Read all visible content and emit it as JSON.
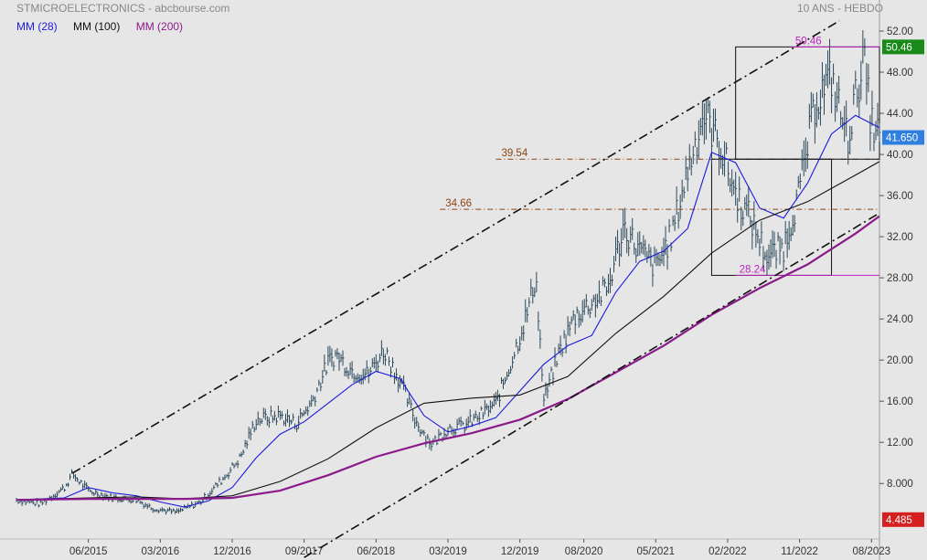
{
  "header": {
    "left_title": "STMICROELECTRONICS - abcbourse.com",
    "right_title": "10 ANS - HEBDO"
  },
  "legend": [
    {
      "label": "MM (28)",
      "color": "#1a1adc"
    },
    {
      "label": "MM (100)",
      "color": "#111111"
    },
    {
      "label": "MM (200)",
      "color": "#8b1a8b"
    }
  ],
  "chart_data": {
    "type": "line",
    "yticks": [
      "52.00",
      "48.00",
      "44.00",
      "40.00",
      "36.00",
      "32.00",
      "28.00",
      "24.00",
      "20.00",
      "16.00",
      "12.00",
      "8.000"
    ],
    "xticks": [
      "06/2015",
      "03/2016",
      "12/2016",
      "09/2017",
      "06/2018",
      "03/2019",
      "12/2019",
      "08/2020",
      "05/2021",
      "02/2022",
      "11/2022",
      "08/2023"
    ],
    "ylim": [
      2.6,
      53.6
    ],
    "price_series": [
      [
        "2014-09",
        6.4
      ],
      [
        "2014-12",
        6.0
      ],
      [
        "2015-03",
        7.6
      ],
      [
        "2015-04",
        8.9
      ],
      [
        "2015-06",
        7.3
      ],
      [
        "2015-09",
        6.6
      ],
      [
        "2015-12",
        6.4
      ],
      [
        "2016-02",
        5.6
      ],
      [
        "2016-05",
        5.2
      ],
      [
        "2016-08",
        6.2
      ],
      [
        "2016-11",
        8.6
      ],
      [
        "2017-01",
        10.5
      ],
      [
        "2017-03",
        14.2
      ],
      [
        "2017-06",
        14.6
      ],
      [
        "2017-08",
        13.8
      ],
      [
        "2017-10",
        16.0
      ],
      [
        "2017-12",
        19.8
      ],
      [
        "2018-01",
        20.5
      ],
      [
        "2018-03",
        19.0
      ],
      [
        "2018-05",
        18.6
      ],
      [
        "2018-07",
        21.0
      ],
      [
        "2018-09",
        18.0
      ],
      [
        "2018-11",
        14.0
      ],
      [
        "2019-01",
        11.8
      ],
      [
        "2019-03",
        13.4
      ],
      [
        "2019-05",
        13.6
      ],
      [
        "2019-07",
        14.6
      ],
      [
        "2019-09",
        15.8
      ],
      [
        "2019-11",
        20.0
      ],
      [
        "2020-01",
        24.8
      ],
      [
        "2020-02",
        28.2
      ],
      [
        "2020-03",
        16.0
      ],
      [
        "2020-05",
        21.0
      ],
      [
        "2020-07",
        24.4
      ],
      [
        "2020-09",
        25.6
      ],
      [
        "2020-11",
        27.0
      ],
      [
        "2021-01",
        33.0
      ],
      [
        "2021-03",
        30.6
      ],
      [
        "2021-05",
        29.0
      ],
      [
        "2021-07",
        32.2
      ],
      [
        "2021-09",
        38.5
      ],
      [
        "2021-11",
        44.0
      ],
      [
        "2022-01",
        41.0
      ],
      [
        "2022-03",
        36.2
      ],
      [
        "2022-05",
        33.5
      ],
      [
        "2022-07",
        30.0
      ],
      [
        "2022-09",
        31.0
      ],
      [
        "2022-11",
        36.5
      ],
      [
        "2023-01",
        45.2
      ],
      [
        "2023-03",
        47.5
      ],
      [
        "2023-05",
        41.5
      ],
      [
        "2023-07",
        49.4
      ],
      [
        "2023-08",
        43.0
      ],
      [
        "2023-09",
        41.65
      ]
    ],
    "series": [
      {
        "name": "MM (28)",
        "color": "#1a1adc",
        "values": [
          [
            "2014-09",
            6.4
          ],
          [
            "2015-03",
            6.6
          ],
          [
            "2015-06",
            7.6
          ],
          [
            "2015-09",
            7.1
          ],
          [
            "2015-12",
            6.8
          ],
          [
            "2016-03",
            6.2
          ],
          [
            "2016-06",
            5.7
          ],
          [
            "2016-09",
            6.3
          ],
          [
            "2016-12",
            7.6
          ],
          [
            "2017-03",
            10.5
          ],
          [
            "2017-06",
            12.8
          ],
          [
            "2017-09",
            14.0
          ],
          [
            "2017-12",
            15.8
          ],
          [
            "2018-03",
            17.6
          ],
          [
            "2018-06",
            18.9
          ],
          [
            "2018-09",
            18.2
          ],
          [
            "2018-12",
            14.6
          ],
          [
            "2019-03",
            13.0
          ],
          [
            "2019-06",
            13.6
          ],
          [
            "2019-09",
            14.4
          ],
          [
            "2019-12",
            17.0
          ],
          [
            "2020-03",
            19.6
          ],
          [
            "2020-06",
            21.4
          ],
          [
            "2020-09",
            22.4
          ],
          [
            "2020-12",
            26.6
          ],
          [
            "2021-03",
            29.6
          ],
          [
            "2021-06",
            30.6
          ],
          [
            "2021-09",
            32.8
          ],
          [
            "2021-12",
            40.2
          ],
          [
            "2022-03",
            39.2
          ],
          [
            "2022-06",
            34.8
          ],
          [
            "2022-09",
            33.8
          ],
          [
            "2022-12",
            37.2
          ],
          [
            "2023-03",
            42.0
          ],
          [
            "2023-06",
            43.8
          ],
          [
            "2023-09",
            42.6
          ]
        ]
      },
      {
        "name": "MM (100)",
        "color": "#111111",
        "values": [
          [
            "2014-09",
            6.4
          ],
          [
            "2015-06",
            6.6
          ],
          [
            "2015-12",
            6.7
          ],
          [
            "2016-06",
            6.5
          ],
          [
            "2016-12",
            6.8
          ],
          [
            "2017-06",
            8.2
          ],
          [
            "2017-12",
            10.4
          ],
          [
            "2018-06",
            13.4
          ],
          [
            "2018-12",
            15.8
          ],
          [
            "2019-06",
            16.3
          ],
          [
            "2019-12",
            16.6
          ],
          [
            "2020-06",
            18.4
          ],
          [
            "2020-12",
            22.6
          ],
          [
            "2021-06",
            26.2
          ],
          [
            "2021-12",
            30.4
          ],
          [
            "2022-06",
            33.6
          ],
          [
            "2022-12",
            35.4
          ],
          [
            "2023-06",
            38.0
          ],
          [
            "2023-09",
            39.3
          ]
        ]
      },
      {
        "name": "MM (200)",
        "color": "#8b1a8b",
        "values": [
          [
            "2014-09",
            6.4
          ],
          [
            "2015-06",
            6.5
          ],
          [
            "2016-06",
            6.5
          ],
          [
            "2016-12",
            6.6
          ],
          [
            "2017-06",
            7.3
          ],
          [
            "2017-12",
            8.8
          ],
          [
            "2018-06",
            10.6
          ],
          [
            "2018-12",
            11.9
          ],
          [
            "2019-06",
            12.9
          ],
          [
            "2019-12",
            14.2
          ],
          [
            "2020-06",
            16.2
          ],
          [
            "2020-12",
            18.8
          ],
          [
            "2021-06",
            21.4
          ],
          [
            "2021-12",
            24.4
          ],
          [
            "2022-06",
            27.0
          ],
          [
            "2022-12",
            29.3
          ],
          [
            "2023-06",
            32.3
          ],
          [
            "2023-09",
            34.0
          ]
        ]
      }
    ],
    "trendlines": [
      {
        "style": "dash-dot",
        "from": [
          "2015-04",
          9.0
        ],
        "to": [
          "2023-04",
          53.0
        ]
      },
      {
        "style": "dash-dot",
        "from": [
          "2017-09",
          0.8
        ],
        "to": [
          "2023-09",
          34.3
        ]
      }
    ],
    "levels": [
      {
        "label": "39.54",
        "value": 39.54,
        "from": "2019-09",
        "color": "#8b4513"
      },
      {
        "label": "34.66",
        "value": 34.66,
        "from": "2019-02",
        "color": "#8b4513"
      }
    ],
    "markers": [
      {
        "label": "50.46",
        "value": 50.46,
        "at": "2022-10",
        "color": "#c020c0"
      },
      {
        "label": "28.24",
        "value": 28.24,
        "at": "2022-03",
        "color": "#c020c0"
      }
    ],
    "boxes": [
      {
        "from": "2022-03",
        "to": "2023-09",
        "low": 39.54,
        "high": 50.46
      },
      {
        "from": "2021-12",
        "to": "2023-03",
        "low": 28.24,
        "high": 39.54
      }
    ],
    "price_tags": [
      {
        "label": "50.46",
        "value": 50.46,
        "bg": "#1a8a1a"
      },
      {
        "label": "41.650",
        "value": 41.65,
        "bg": "#2f7fe0"
      },
      {
        "label": "4.485",
        "value": 4.485,
        "bg": "#d42020"
      }
    ]
  }
}
